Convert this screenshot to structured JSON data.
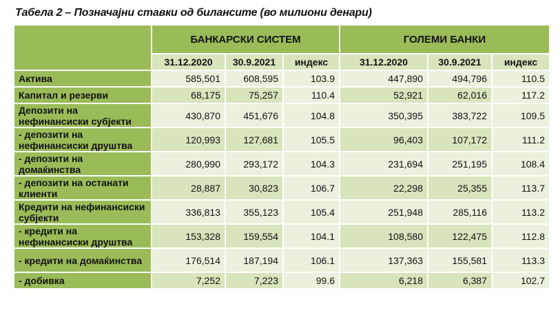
{
  "title": "Табела 2 – Позначајни ставки од билансите (во милиони денари)",
  "groups": [
    "БАНКАРСКИ СИСТЕМ",
    "ГОЛЕМИ БАНКИ"
  ],
  "columns": [
    "31.12.2020",
    "30.9.2021",
    "индекс",
    "31.12.2020",
    "30.9.2021",
    "индекс"
  ],
  "rows": [
    {
      "label": "Актива",
      "values": [
        "585,501",
        "608,595",
        "103.9",
        "447,890",
        "494,796",
        "110.5"
      ]
    },
    {
      "label": "Капитал и резерви",
      "values": [
        "68,175",
        "75,257",
        "110.4",
        "52,921",
        "62,016",
        "117.2"
      ]
    },
    {
      "label": "Депозити на нефинансиски субјекти",
      "values": [
        "430,870",
        "451,676",
        "104.8",
        "350,395",
        "383,722",
        "109.5"
      ]
    },
    {
      "label": "- депозити на нефинансиски друштва",
      "values": [
        "120,993",
        "127,681",
        "105.5",
        "96,403",
        "107,172",
        "111.2"
      ]
    },
    {
      "label": "- депозити на домаќинства",
      "values": [
        "280,990",
        "293,172",
        "104.3",
        "231,694",
        "251,195",
        "108.4"
      ]
    },
    {
      "label": "- депозити на останати клиенти",
      "values": [
        "28,887",
        "30,823",
        "106.7",
        "22,298",
        "25,355",
        "113.7"
      ]
    },
    {
      "label": "Кредити на нефинансиски субјекти",
      "values": [
        "336,813",
        "355,123",
        "105.4",
        "251,948",
        "285,116",
        "113.2"
      ]
    },
    {
      "label": "- кредити на нефинансиски друштва",
      "values": [
        "153,328",
        "159,554",
        "104.1",
        "108,580",
        "122,475",
        "112.8"
      ]
    },
    {
      "label": "- кредити на домаќинства",
      "values": [
        "176,514",
        "187,194",
        "106.1",
        "137,363",
        "155,581",
        "113.3"
      ]
    },
    {
      "label": "- добивка",
      "values": [
        "7,252",
        "7,223",
        "99.6",
        "6,218",
        "6,387",
        "102.7"
      ]
    }
  ]
}
